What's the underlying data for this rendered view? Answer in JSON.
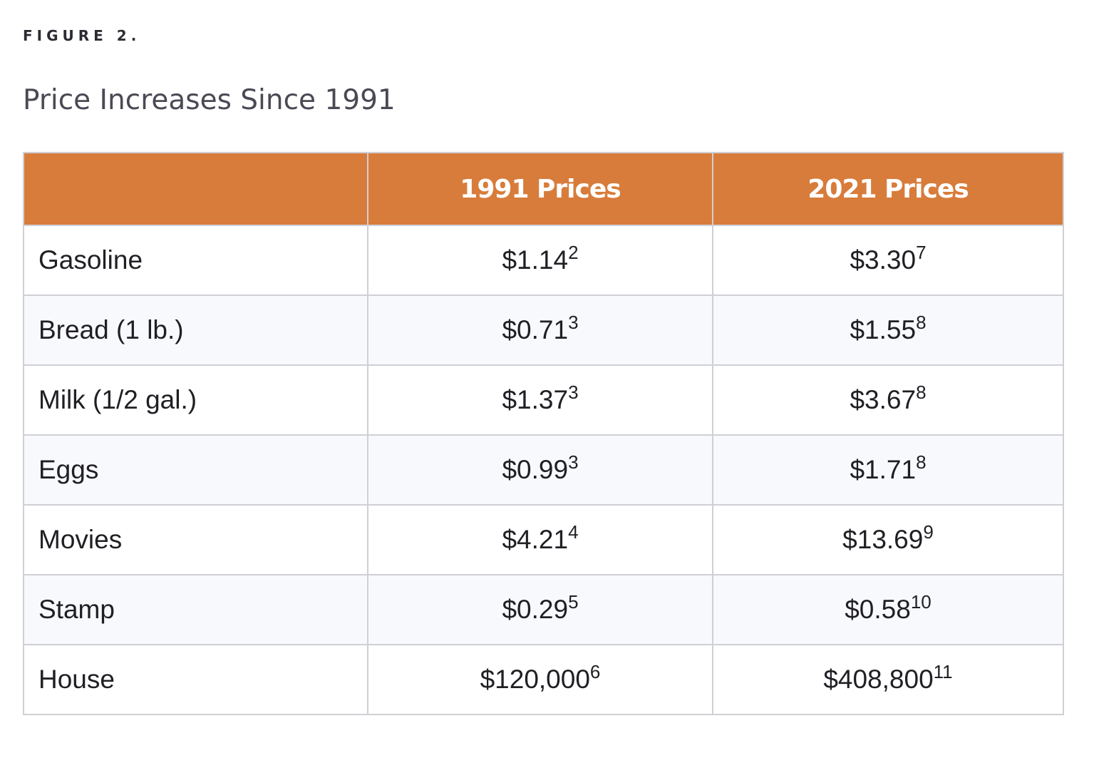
{
  "figure_label": "FIGURE 2.",
  "title": "Price Increases Since 1991",
  "chart_data": {
    "type": "table",
    "title": "Price Increases Since 1991",
    "columns": [
      "",
      "1991 Prices",
      "2021 Prices"
    ],
    "rows": [
      {
        "item": "Gasoline",
        "p1991": "$1.14",
        "n1991": "2",
        "p2021": "$3.30",
        "n2021": "7"
      },
      {
        "item": "Bread (1 lb.)",
        "p1991": "$0.71",
        "n1991": "3",
        "p2021": "$1.55",
        "n2021": "8"
      },
      {
        "item": "Milk (1/2 gal.)",
        "p1991": "$1.37",
        "n1991": "3",
        "p2021": "$3.67",
        "n2021": "8"
      },
      {
        "item": "Eggs",
        "p1991": "$0.99",
        "n1991": "3",
        "p2021": "$1.71",
        "n2021": "8"
      },
      {
        "item": "Movies",
        "p1991": "$4.21",
        "n1991": "4",
        "p2021": "$13.69",
        "n2021": "9"
      },
      {
        "item": "Stamp",
        "p1991": "$0.29",
        "n1991": "5",
        "p2021": "$0.58",
        "n2021": "10"
      },
      {
        "item": "House",
        "p1991": "$120,000",
        "n1991": "6",
        "p2021": "$408,800",
        "n2021": "11"
      }
    ]
  },
  "colors": {
    "header_bg": "#d87c3b",
    "header_text": "#ffffff",
    "border": "#cfd0d6",
    "alt_row_bg": "#f8f9fc"
  }
}
